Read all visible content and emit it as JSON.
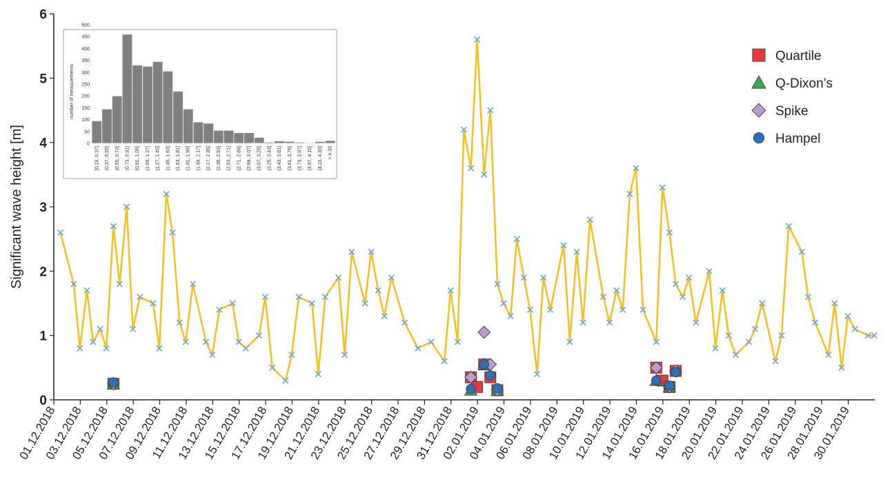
{
  "chart_data": [
    {
      "type": "line",
      "xlabel": "",
      "ylabel": "Significant wave height [m]",
      "ylim": [
        0,
        6
      ],
      "xlim": [
        "2018-12-01",
        "2019-01-31"
      ],
      "yticks": [
        "0",
        "1",
        "2",
        "3",
        "4",
        "5",
        "6"
      ],
      "xticks": [
        "01.12.2018",
        "03.12.2018",
        "05.12.2018",
        "07.12.2018",
        "09.12.2018",
        "11.12.2018",
        "13.12.2018",
        "15.12.2018",
        "17.12.2018",
        "19.12.2018",
        "21.12.2018",
        "23.12.2018",
        "25.12.2018",
        "27.12.2018",
        "29.12.2018",
        "31.12.2018",
        "02.01.2019",
        "04.01.2019",
        "06.01.2019",
        "08.01.2019",
        "10.01.2019",
        "12.01.2019",
        "14.01.2019",
        "16.01.2019",
        "18.01.2019",
        "20.01.2019",
        "22.01.2019",
        "24.01.2019",
        "26.01.2019",
        "28.01.2019",
        "30.01.2019"
      ],
      "grid": false,
      "legend_position": "top-right",
      "series": [
        {
          "style": "line-with-x-markers",
          "line_color": "#f5bf1e",
          "marker_color": "#6fa3d6",
          "x": [
            "2018-12-01",
            "2018-12-02",
            "2018-12-02",
            "2018-12-03",
            "2018-12-03",
            "2018-12-04",
            "2018-12-04",
            "2018-12-05",
            "2018-12-05",
            "2018-12-06",
            "2018-12-06",
            "2018-12-07",
            "2018-12-08",
            "2018-12-08",
            "2018-12-09",
            "2018-12-09",
            "2018-12-10",
            "2018-12-10",
            "2018-12-11",
            "2018-12-12",
            "2018-12-12",
            "2018-12-13",
            "2018-12-14",
            "2018-12-14",
            "2018-12-15",
            "2018-12-16",
            "2018-12-16",
            "2018-12-17",
            "2018-12-18",
            "2018-12-18",
            "2018-12-19",
            "2018-12-20",
            "2018-12-20",
            "2018-12-21",
            "2018-12-22",
            "2018-12-22",
            "2018-12-23",
            "2018-12-24",
            "2018-12-24",
            "2018-12-25",
            "2018-12-25",
            "2018-12-26",
            "2018-12-27",
            "2018-12-28",
            "2018-12-29",
            "2018-12-30",
            "2018-12-30",
            "2018-12-31",
            "2018-12-31",
            "2019-01-01",
            "2019-01-01",
            "2019-01-02",
            "2019-01-02",
            "2019-01-03",
            "2019-01-03",
            "2019-01-04",
            "2019-01-04",
            "2019-01-05",
            "2019-01-05",
            "2019-01-06",
            "2019-01-06",
            "2019-01-07",
            "2019-01-08",
            "2019-01-08",
            "2019-01-09",
            "2019-01-09",
            "2019-01-10",
            "2019-01-11",
            "2019-01-11",
            "2019-01-12",
            "2019-01-12",
            "2019-01-13",
            "2019-01-13",
            "2019-01-14",
            "2019-01-15",
            "2019-01-15",
            "2019-01-16",
            "2019-01-16",
            "2019-01-17",
            "2019-01-17",
            "2019-01-18",
            "2019-01-19",
            "2019-01-19",
            "2019-01-20",
            "2019-01-20",
            "2019-01-21",
            "2019-01-22",
            "2019-01-22",
            "2019-01-23",
            "2019-01-24",
            "2019-01-24",
            "2019-01-25",
            "2019-01-26",
            "2019-01-26",
            "2019-01-27",
            "2019-01-28",
            "2019-01-28",
            "2019-01-29",
            "2019-01-29",
            "2019-01-30",
            "2019-01-31",
            "2019-01-31"
          ],
          "values": [
            2.6,
            1.8,
            0.8,
            1.7,
            0.9,
            1.1,
            0.8,
            2.7,
            1.8,
            3.0,
            1.1,
            1.6,
            1.5,
            0.8,
            3.2,
            2.6,
            1.2,
            0.9,
            1.8,
            0.9,
            0.7,
            1.4,
            1.5,
            0.9,
            0.8,
            1.0,
            1.6,
            0.5,
            0.3,
            0.7,
            1.6,
            1.5,
            0.4,
            1.6,
            1.9,
            0.7,
            2.3,
            1.5,
            2.3,
            1.7,
            1.3,
            1.9,
            1.2,
            0.8,
            0.9,
            0.6,
            1.7,
            0.9,
            4.2,
            3.6,
            5.6,
            3.5,
            4.5,
            1.8,
            1.5,
            1.3,
            2.5,
            1.9,
            1.4,
            0.4,
            1.9,
            1.4,
            2.4,
            0.9,
            2.3,
            1.2,
            2.8,
            1.6,
            1.2,
            1.7,
            1.4,
            3.2,
            3.6,
            1.4,
            0.9,
            3.3,
            2.6,
            1.8,
            1.6,
            1.9,
            1.2,
            2.0,
            0.8,
            1.7,
            1.0,
            0.7,
            0.9,
            1.1,
            1.5,
            0.6,
            1.0,
            2.7,
            2.3,
            1.6,
            1.2,
            0.7,
            1.5,
            0.5,
            1.3,
            1.1,
            1.0,
            1.0
          ]
        },
        {
          "name": "Quartile",
          "marker": "square",
          "color": "#e8393f",
          "x": [
            "2018-12-05",
            "2019-01-01",
            "2019-01-01",
            "2019-01-02",
            "2019-01-02",
            "2019-01-03",
            "2019-01-15",
            "2019-01-15",
            "2019-01-16",
            "2019-01-16"
          ],
          "values": [
            0.25,
            0.35,
            0.2,
            0.55,
            0.35,
            0.15,
            0.5,
            0.3,
            0.2,
            0.45
          ]
        },
        {
          "name": "Q-Dixon’s",
          "marker": "triangle",
          "color": "#3aa655",
          "x": [
            "2018-12-05",
            "2019-01-01",
            "2019-01-02",
            "2019-01-03",
            "2019-01-15",
            "2019-01-16"
          ],
          "values": [
            0.25,
            0.15,
            0.55,
            0.15,
            0.3,
            0.2
          ]
        },
        {
          "name": "Spike",
          "marker": "diamond",
          "color": "#b99cd1",
          "x": [
            "2018-12-05",
            "2019-01-01",
            "2019-01-02",
            "2019-01-02",
            "2019-01-03",
            "2019-01-15",
            "2019-01-16",
            "2019-01-16"
          ],
          "values": [
            0.25,
            0.35,
            1.05,
            0.55,
            0.15,
            0.5,
            0.2,
            0.45
          ]
        },
        {
          "name": "Hampel",
          "marker": "circle",
          "color": "#2e6fba",
          "x": [
            "2018-12-05",
            "2019-01-01",
            "2019-01-02",
            "2019-01-02",
            "2019-01-03",
            "2019-01-15",
            "2019-01-16",
            "2019-01-16"
          ],
          "values": [
            0.27,
            0.17,
            0.55,
            0.38,
            0.18,
            0.3,
            0.22,
            0.43
          ]
        }
      ]
    },
    {
      "type": "bar",
      "ylabel": "number of measurements",
      "ylim": [
        0,
        500
      ],
      "yticks": [
        "0",
        "50",
        "100",
        "150",
        "200",
        "250",
        "300",
        "350",
        "400",
        "450",
        "500"
      ],
      "bar_color": "#808080",
      "categories": [
        "[0.19, 0.37]",
        "(0.37, 0.55]",
        "(0.55, 0.73]",
        "(0.73, 0.91]",
        "(0.91, 1.09]",
        "(1.09, 1.27]",
        "(1.27, 1.45]",
        "(1.45, 1.63]",
        "(1.63, 1.81]",
        "(1.81, 1.99]",
        "(1.99, 2.17]",
        "(2.17, 2.35]",
        "(2.35, 2.53]",
        "(2.53, 2.71]",
        "(2.71, 2.89]",
        "(2.89, 3.07]",
        "(3.07, 3.25]",
        "(3.25, 3.43]",
        "(3.43, 3.61]",
        "(3.61, 3.79]",
        "(3.79, 3.97]",
        "(3.97, 4.15]",
        "(4.15, 4.33]",
        "> 4.33"
      ],
      "values": [
        95,
        145,
        200,
        460,
        330,
        325,
        345,
        305,
        220,
        145,
        90,
        85,
        55,
        55,
        45,
        45,
        25,
        5,
        10,
        8,
        5,
        3,
        8,
        12
      ]
    }
  ]
}
